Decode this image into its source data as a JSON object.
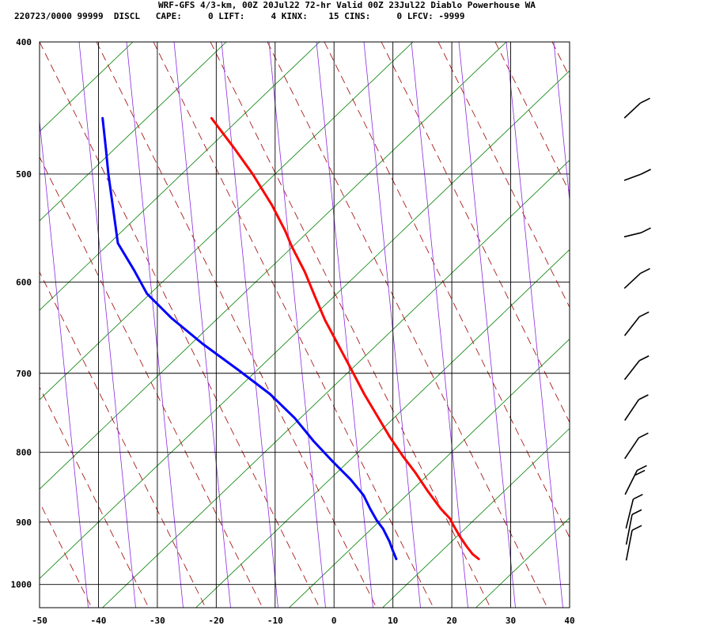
{
  "header": {
    "line1": "WRF-GFS 4/3-km, 00Z 20Jul22 72-hr Valid 00Z 23Jul22 Diablo Powerhouse WA",
    "line2": "220723/0000 99999  DISCL   CAPE:     0 LIFT:     4 KINX:    15 CINS:     0 LFCV: -9999"
  },
  "chart_data": {
    "type": "line",
    "title": "WRF-GFS 4/3-km, 00Z 20Jul22 72-hr Valid 00Z 23Jul22 Diablo Powerhouse WA",
    "x_ticks": [
      -50,
      -40,
      -30,
      -20,
      -10,
      0,
      10,
      20,
      30,
      40
    ],
    "y_ticks": [
      400,
      500,
      600,
      700,
      800,
      900,
      1000
    ],
    "xlim": [
      -50,
      40
    ],
    "ylim": [
      400,
      1040
    ],
    "y_scale": "log",
    "y_inverted": true,
    "series": [
      {
        "color": "#ff0000",
        "points": [
          [
            -16.5,
            455
          ],
          [
            -13,
            478
          ],
          [
            -10,
            500
          ],
          [
            -7,
            527
          ],
          [
            -5,
            550
          ],
          [
            -4,
            565
          ],
          [
            -2,
            590
          ],
          [
            -0.5,
            615
          ],
          [
            1,
            640
          ],
          [
            3,
            667
          ],
          [
            5,
            695
          ],
          [
            7,
            725
          ],
          [
            9,
            752
          ],
          [
            11,
            780
          ],
          [
            13,
            805
          ],
          [
            15,
            828
          ],
          [
            17,
            855
          ],
          [
            19,
            880
          ],
          [
            20.5,
            895
          ],
          [
            21,
            905
          ],
          [
            22,
            922
          ],
          [
            23,
            937
          ],
          [
            24,
            950
          ],
          [
            25,
            958
          ]
        ]
      },
      {
        "color": "#0000ff",
        "points": [
          [
            -35,
            455
          ],
          [
            -34.7,
            480
          ],
          [
            -34.5,
            500
          ],
          [
            -34,
            530
          ],
          [
            -33.5,
            562
          ],
          [
            -31,
            588
          ],
          [
            -29,
            612
          ],
          [
            -25,
            638
          ],
          [
            -20,
            666
          ],
          [
            -14,
            697
          ],
          [
            -9,
            725
          ],
          [
            -5,
            755
          ],
          [
            -2,
            785
          ],
          [
            1,
            812
          ],
          [
            4,
            838
          ],
          [
            6,
            860
          ],
          [
            7,
            880
          ],
          [
            8,
            897
          ],
          [
            9,
            910
          ],
          [
            10,
            930
          ],
          [
            10.5,
            945
          ],
          [
            11,
            958
          ]
        ]
      }
    ],
    "background_lines": {
      "isotherms": "black",
      "dry_adiabats": "green",
      "moist_adiabats": "dark red dashed",
      "mixing_ratio": "purple"
    },
    "wind_barbs": [
      {
        "pressure": 450,
        "direction": 250,
        "speed_kt": 10
      },
      {
        "pressure": 500,
        "direction": 270,
        "speed_kt": 10
      },
      {
        "pressure": 550,
        "direction": 275,
        "speed_kt": 10
      },
      {
        "pressure": 600,
        "direction": 250,
        "speed_kt": 10
      },
      {
        "pressure": 650,
        "direction": 240,
        "speed_kt": 10
      },
      {
        "pressure": 700,
        "direction": 240,
        "speed_kt": 10
      },
      {
        "pressure": 750,
        "direction": 235,
        "speed_kt": 10
      },
      {
        "pressure": 800,
        "direction": 235,
        "speed_kt": 10
      },
      {
        "pressure": 850,
        "direction": 225,
        "speed_kt": 15
      },
      {
        "pressure": 900,
        "direction": 205,
        "speed_kt": 10
      },
      {
        "pressure": 925,
        "direction": 200,
        "speed_kt": 10
      },
      {
        "pressure": 950,
        "direction": 200,
        "speed_kt": 10
      }
    ]
  }
}
